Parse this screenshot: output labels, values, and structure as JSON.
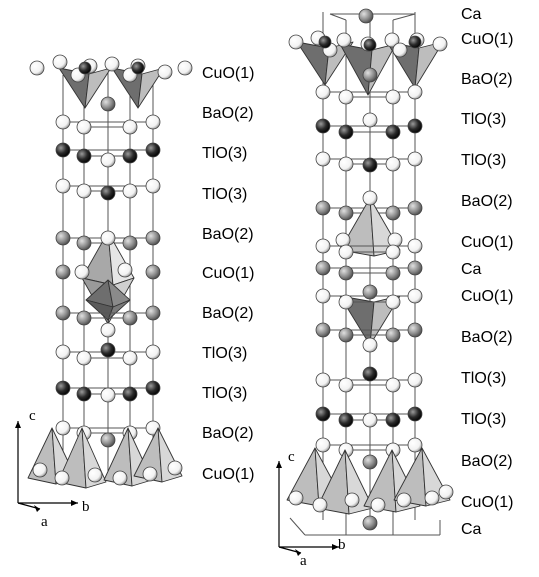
{
  "left_structure": {
    "layers": [
      "CuO(1)",
      "BaO(2)",
      "TlO(3)",
      "TlO(3)",
      "BaO(2)",
      "CuO(1)",
      "BaO(2)",
      "TlO(3)",
      "TlO(3)",
      "BaO(2)",
      "CuO(1)"
    ],
    "axes": {
      "c": "c",
      "a": "a",
      "b": "b"
    }
  },
  "right_structure": {
    "layers": [
      "Ca",
      "CuO(1)",
      "BaO(2)",
      "TlO(3)",
      "TlO(3)",
      "BaO(2)",
      "CuO(1)",
      "Ca",
      "CuO(1)",
      "BaO(2)",
      "TlO(3)",
      "TlO(3)",
      "BaO(2)",
      "CuO(1)",
      "Ca"
    ],
    "axes": {
      "c": "c",
      "a": "a",
      "b": "b"
    }
  },
  "colors": {
    "atom_white": "#ffffff",
    "atom_gray": "#8c8c8c",
    "atom_black": "#1a1a1a",
    "poly_dark": "#6e6e6e",
    "poly_light": "#bdbdbd",
    "line": "#555555"
  }
}
